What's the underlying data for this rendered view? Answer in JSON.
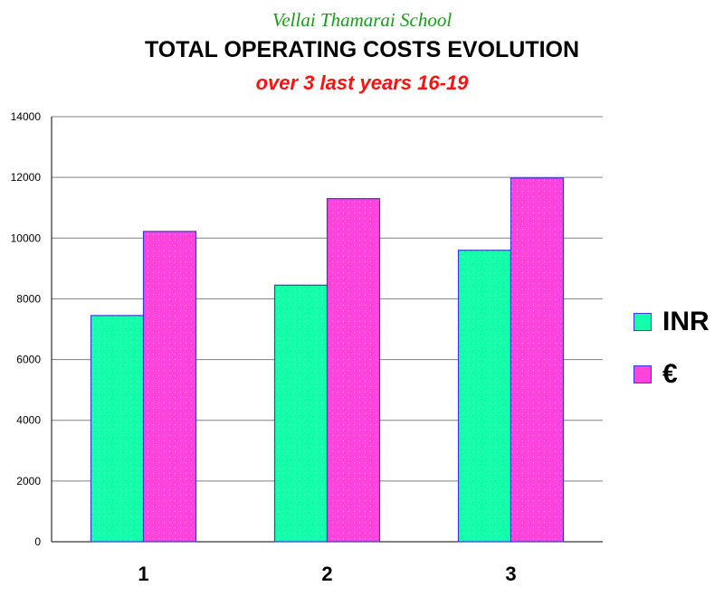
{
  "header": {
    "school": "Vellai Thamarai School",
    "title": "TOTAL OPERATING COSTS EVOLUTION",
    "subtitle": "over 3 last years 16-19"
  },
  "colors": {
    "inr": "#14ffaa",
    "eur": "#ff44dd",
    "bar_border": "#3a3ad0",
    "grid": "#808080"
  },
  "chart_data": {
    "type": "bar",
    "title": "TOTAL OPERATING COSTS EVOLUTION",
    "subtitle": "over 3 last years 16-19",
    "categories": [
      "1",
      "2",
      "3"
    ],
    "series": [
      {
        "name": "INR",
        "values": [
          7450,
          8450,
          9600
        ]
      },
      {
        "name": "€",
        "values": [
          10220,
          11300,
          11980
        ]
      }
    ],
    "y_ticks": [
      "0",
      "2000",
      "4000",
      "6000",
      "8000",
      "10000",
      "12000",
      "14000"
    ],
    "ylim": [
      0,
      14000
    ],
    "xlabel": "",
    "ylabel": "",
    "grid": true,
    "legend_position": "right"
  },
  "legend": {
    "items": [
      {
        "label": "INR"
      },
      {
        "label": "€"
      }
    ]
  }
}
